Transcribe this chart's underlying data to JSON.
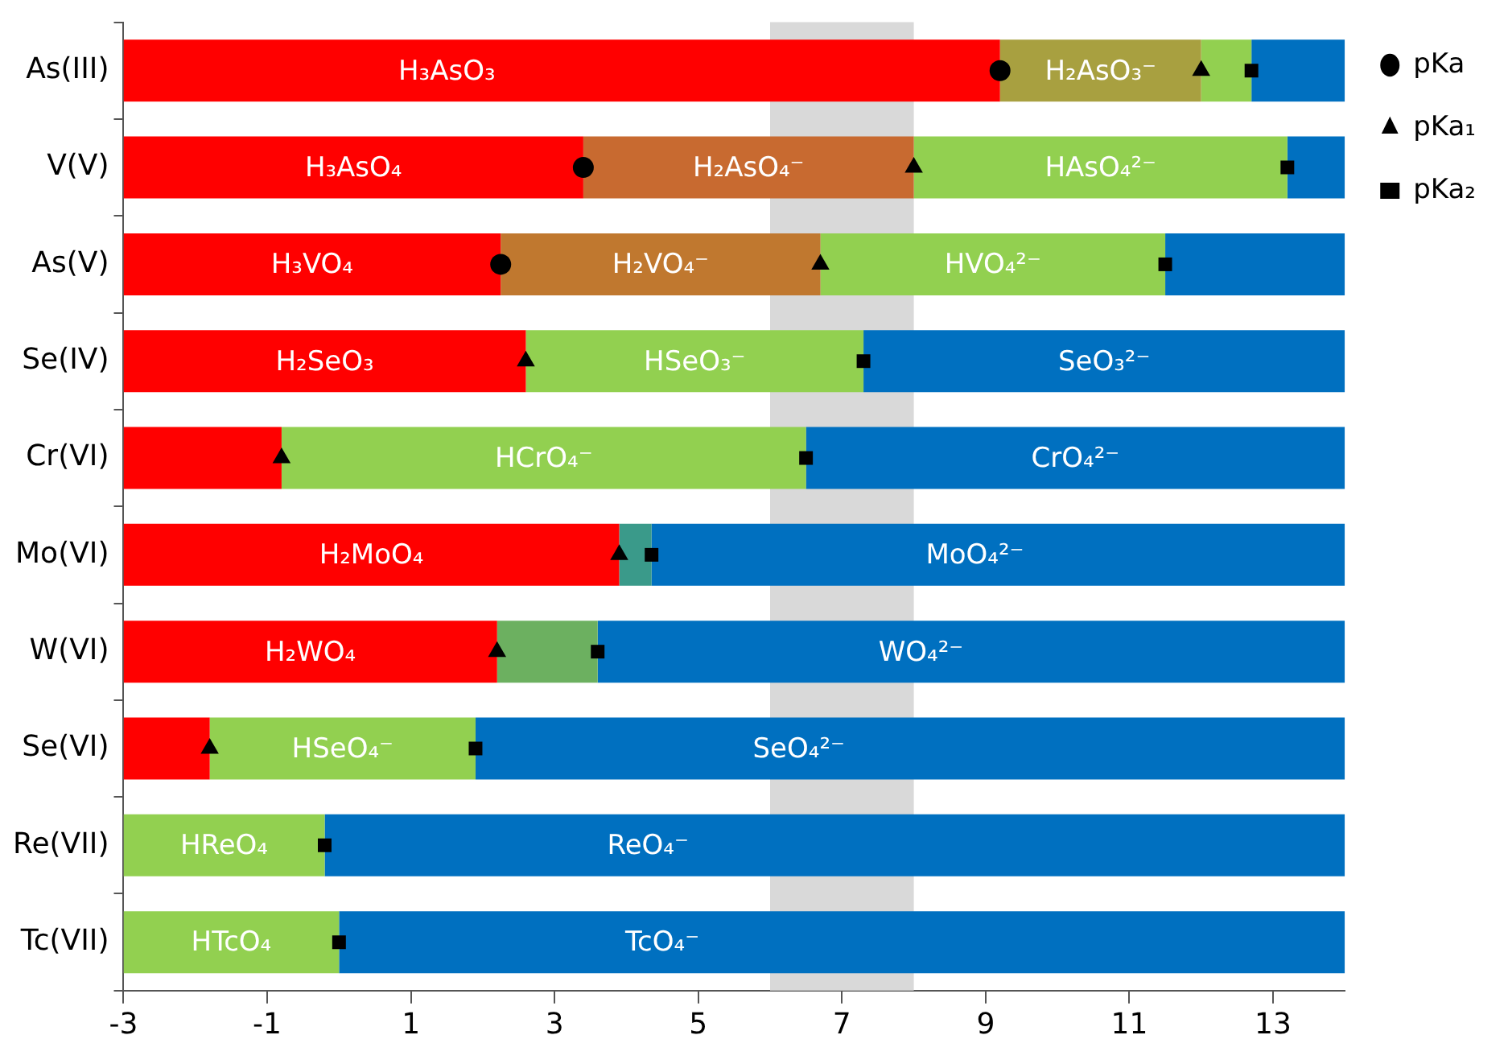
{
  "chart_data": {
    "type": "bar",
    "orientation": "horizontal",
    "grid": false,
    "legend": "top right",
    "categories": [
      "As(III)",
      "V(V)",
      "As(V)",
      "Se(IV)",
      "Cr(VI)",
      "Mo(VI)",
      "W(VI)",
      "Se(VI)",
      "Re(VII)",
      "Tc(VII)"
    ],
    "xlim": [
      -3,
      14
    ],
    "xticks": [
      -3,
      -1,
      1,
      3,
      5,
      7,
      9,
      11,
      13
    ],
    "series": [
      {
        "colors": [
          "#ff0000",
          "#ff0000",
          "#ff0000",
          "#ff0000",
          "#ff0000",
          "#ff0000",
          "#ff0000",
          "#ff0000",
          "#92d050",
          "#92d050"
        ],
        "base": [
          -3,
          -3,
          -3,
          -3,
          -3,
          -3,
          -3,
          -3,
          -3,
          -3
        ],
        "values": [
          12.2,
          6.4,
          5.25,
          5.6,
          2.2,
          6.9,
          5.2,
          1.2,
          2.8,
          3
        ],
        "value_labels": [
          "H₃AsO₃",
          "H₃AsO₄",
          "H₃VO₄",
          "H₂SeO₃",
          null,
          "H₂MoO₄",
          "H₂WO₄",
          null,
          "HReO₄",
          "HTcO₄"
        ]
      },
      {
        "colors": [
          "#a8a040",
          "#c86a30",
          "#c0782f",
          "#92d050",
          "#92d050",
          "#3a9a8a",
          "#6cb060",
          "#92d050",
          "#0070c0",
          "#0070c0"
        ],
        "base": [
          9.2,
          3.4,
          2.25,
          2.6,
          -0.8,
          3.9,
          2.2,
          -1.8,
          -0.2,
          0
        ],
        "values": [
          2.8,
          4.6,
          4.45,
          4.7,
          7.3,
          0.45,
          1.4,
          3.7,
          14.2,
          14
        ],
        "value_labels": [
          "H₂AsO₃⁻",
          "H₂AsO₄⁻",
          "H₂VO₄⁻",
          "HSeO₃⁻",
          "HCrO₄⁻",
          null,
          null,
          "HSeO₄⁻",
          "ReO₄⁻",
          "TcO₄⁻"
        ]
      },
      {
        "colors": [
          "#92d050",
          "#92d050",
          "#92d050",
          "#0070c0",
          "#0070c0",
          "#0070c0",
          "#0070c0",
          "#0070c0",
          "#0070c0",
          "#0070c0"
        ],
        "base": [
          12,
          8,
          6.7,
          7.3,
          6.5,
          4.35,
          3.6,
          1.9,
          null,
          null
        ],
        "values": [
          0.7,
          5.2,
          4.8,
          6.7,
          7.5,
          9.65,
          10.4,
          12.1,
          null,
          null
        ],
        "value_labels": [
          null,
          "HAsO₄²⁻",
          "HVO₄²⁻",
          "SeO₃²⁻",
          "CrO₄²⁻",
          "MoO₄²⁻",
          "WO₄²⁻",
          "SeO₄²⁻",
          null,
          null
        ]
      },
      {
        "color": "#0070c0",
        "base": [
          12.7,
          13.2,
          11.5,
          null,
          null,
          null,
          null,
          null,
          null,
          null
        ],
        "values": [
          1.3,
          0.8,
          2.5,
          null,
          null,
          null,
          null,
          null,
          null,
          null
        ]
      },
      {
        "type": "scatter",
        "name": "pKa",
        "marker": "circle",
        "color": "#000000",
        "values": [
          9.2,
          3.4,
          2.25,
          null,
          null,
          null,
          null,
          null,
          null,
          null
        ]
      },
      {
        "type": "scatter",
        "name": "pKa₁",
        "marker": "triangle",
        "color": "#000000",
        "values": [
          12,
          8,
          6.7,
          2.6,
          -0.8,
          3.9,
          2.2,
          -1.8,
          null,
          null
        ]
      },
      {
        "type": "scatter",
        "name": "pKa₂",
        "marker": "square",
        "color": "#000000",
        "values": [
          12.7,
          13.2,
          11.5,
          7.3,
          6.5,
          4.35,
          3.6,
          1.9,
          -0.2,
          0
        ]
      }
    ],
    "bands": [
      {
        "axis": "x",
        "from": 6,
        "to": 8,
        "color": "#d9d9d9"
      }
    ]
  }
}
